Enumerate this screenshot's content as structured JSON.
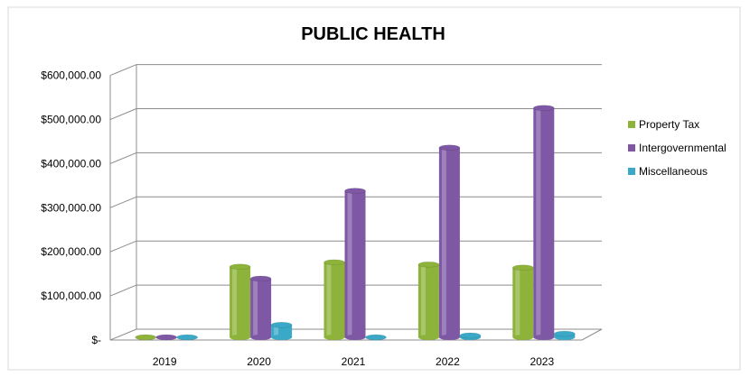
{
  "chart_data": {
    "type": "bar",
    "title": "PUBLIC HEALTH",
    "categories": [
      "2019",
      "2020",
      "2021",
      "2022",
      "2023"
    ],
    "series": [
      {
        "name": "Property Tax",
        "color": "#8DB33A",
        "values": [
          0,
          160000,
          170000,
          165000,
          158000
        ]
      },
      {
        "name": "Intergovernmental",
        "color": "#7E57A5",
        "values": [
          0,
          133000,
          332000,
          430000,
          520000
        ]
      },
      {
        "name": "Miscellaneous",
        "color": "#3AA9C7",
        "values": [
          0,
          28000,
          0,
          4000,
          8000
        ]
      }
    ],
    "yticks": [
      "$-",
      "$100,000.00",
      "$200,000.00",
      "$300,000.00",
      "$400,000.00",
      "$500,000.00",
      "$600,000.00"
    ],
    "ylim": [
      0,
      600000
    ],
    "legend": "right",
    "grid": true,
    "three_d": true
  }
}
